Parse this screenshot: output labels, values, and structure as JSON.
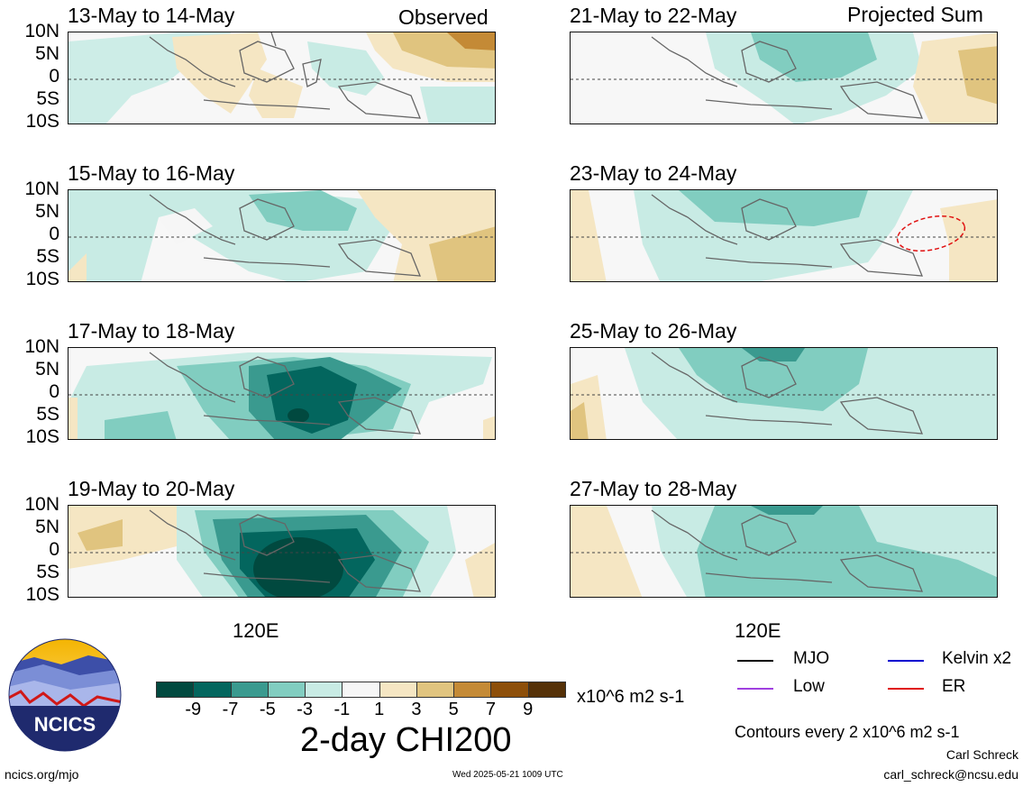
{
  "colors": {
    "neg9": "#01493f",
    "neg7": "#03665e",
    "neg5": "#3a9a8f",
    "neg3": "#81cdc0",
    "neg1": "#c8ebe4",
    "zero": "#f6f6f6",
    "pos1": "#f5e6c3",
    "pos3": "#e0c47f",
    "pos5": "#c48a36",
    "pos7": "#8d4f0a",
    "pos9": "#553108",
    "mjo": "#000000",
    "low": "#a040e0",
    "kelvin": "#0000d0",
    "er": "#e01010",
    "land": "#666666"
  },
  "panels": {
    "left_header": "Observed",
    "right_header": "Projected Sum",
    "left": [
      {
        "date": "13-May to 14-May"
      },
      {
        "date": "15-May to 16-May"
      },
      {
        "date": "17-May to 18-May"
      },
      {
        "date": "19-May to 20-May"
      }
    ],
    "right": [
      {
        "date": "21-May to 22-May"
      },
      {
        "date": "23-May to 24-May"
      },
      {
        "date": "25-May to 26-May"
      },
      {
        "date": "27-May to 28-May"
      }
    ],
    "lat_labels": [
      "10N",
      "5N",
      "0",
      "5S",
      "10S"
    ],
    "lon_label": "120E"
  },
  "colorbar": {
    "ticks": [
      "-9",
      "-7",
      "-5",
      "-3",
      "-1",
      "1",
      "3",
      "5",
      "7",
      "9"
    ],
    "units": "x10^6 m2 s-1",
    "title": "2-day CHI200"
  },
  "legend": {
    "mjo": "MJO",
    "low": "Low",
    "kelvin": "Kelvin x2",
    "er": "ER",
    "contours": "Contours every 2 x10^6 m2 s-1"
  },
  "logo": {
    "text": "NCICS"
  },
  "footer": {
    "url": "ncics.org/mjo",
    "timestamp": "Wed 2025-05-21 1009 UTC",
    "author": "Carl Schreck",
    "email": "carl_schreck@ncsu.edu"
  }
}
